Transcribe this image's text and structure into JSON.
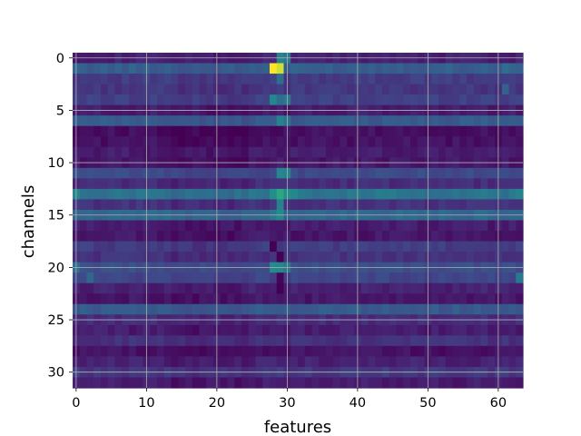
{
  "chart_data": {
    "type": "heatmap",
    "xlabel": "features",
    "ylabel": "channels",
    "n_cols": 64,
    "n_rows": 32,
    "xlim": [
      -0.5,
      63.5
    ],
    "ylim": [
      31.5,
      -0.5
    ],
    "x_ticks": [
      0,
      10,
      20,
      30,
      40,
      50,
      60
    ],
    "y_ticks": [
      0,
      5,
      10,
      15,
      20,
      25,
      30
    ],
    "grid": true,
    "colormap": "viridis",
    "value_range": [
      0,
      1
    ],
    "row_values": [
      0.12,
      0.38,
      0.22,
      0.2,
      0.24,
      0.1,
      0.36,
      0.05,
      0.06,
      0.1,
      0.08,
      0.28,
      0.16,
      0.48,
      0.18,
      0.42,
      0.1,
      0.08,
      0.22,
      0.18,
      0.3,
      0.26,
      0.12,
      0.08,
      0.36,
      0.16,
      0.1,
      0.18,
      0.06,
      0.12,
      0.2,
      0.1
    ],
    "hot_cells": [
      {
        "row": 1,
        "col": 28,
        "value": 1.0
      },
      {
        "row": 1,
        "col": 29,
        "value": 0.95
      },
      {
        "row": 0,
        "col": 29,
        "value": 0.55
      },
      {
        "row": 0,
        "col": 30,
        "value": 0.5
      },
      {
        "row": 2,
        "col": 29,
        "value": 0.45
      },
      {
        "row": 4,
        "col": 28,
        "value": 0.58
      },
      {
        "row": 4,
        "col": 29,
        "value": 0.45
      },
      {
        "row": 4,
        "col": 30,
        "value": 0.5
      },
      {
        "row": 6,
        "col": 29,
        "value": 0.55
      },
      {
        "row": 6,
        "col": 30,
        "value": 0.48
      },
      {
        "row": 11,
        "col": 29,
        "value": 0.58
      },
      {
        "row": 11,
        "col": 30,
        "value": 0.55
      },
      {
        "row": 13,
        "col": 28,
        "value": 0.62
      },
      {
        "row": 13,
        "col": 29,
        "value": 0.7
      },
      {
        "row": 13,
        "col": 30,
        "value": 0.62
      },
      {
        "row": 13,
        "col": 31,
        "value": 0.58
      },
      {
        "row": 13,
        "col": 0,
        "value": 0.58
      },
      {
        "row": 13,
        "col": 63,
        "value": 0.55
      },
      {
        "row": 14,
        "col": 29,
        "value": 0.55
      },
      {
        "row": 15,
        "col": 29,
        "value": 0.6
      },
      {
        "row": 15,
        "col": 28,
        "value": 0.5
      },
      {
        "row": 20,
        "col": 28,
        "value": 0.6
      },
      {
        "row": 20,
        "col": 29,
        "value": 0.58
      },
      {
        "row": 20,
        "col": 30,
        "value": 0.5
      },
      {
        "row": 21,
        "col": 63,
        "value": 0.5
      },
      {
        "row": 20,
        "col": 0,
        "value": 0.45
      },
      {
        "row": 21,
        "col": 2,
        "value": 0.42
      },
      {
        "row": 3,
        "col": 61,
        "value": 0.4
      },
      {
        "row": 1,
        "col": 61,
        "value": 0.45
      }
    ],
    "low_cells": [
      {
        "row": 18,
        "col": 28,
        "value": 0.0
      },
      {
        "row": 19,
        "col": 29,
        "value": 0.0
      },
      {
        "row": 22,
        "col": 29,
        "value": 0.0
      },
      {
        "row": 21,
        "col": 29,
        "value": 0.02
      }
    ]
  }
}
